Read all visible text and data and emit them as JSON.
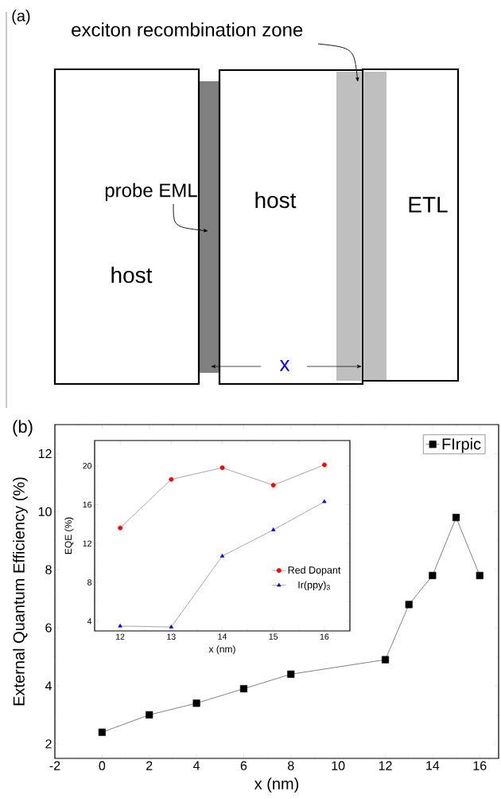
{
  "chart_data": [
    {
      "type": "other",
      "title": "(a)",
      "annotations": [
        "exciton recombination zone",
        "probe EML",
        "host",
        "host",
        "ETL",
        "x"
      ]
    },
    {
      "type": "line",
      "title": "(b)",
      "xlabel": "x (nm)",
      "ylabel": "External Quantum Efficiency (%)",
      "x": [
        0,
        2,
        4,
        6,
        8,
        12,
        13,
        14,
        15,
        16
      ],
      "series": [
        {
          "name": "FIrpic",
          "color": "#000000",
          "values": [
            2.4,
            3.0,
            3.4,
            3.9,
            4.4,
            4.9,
            6.8,
            7.8,
            9.8,
            7.8
          ]
        }
      ],
      "xlim": [
        -2,
        16.8
      ],
      "ylim": [
        1.5,
        13
      ],
      "xticks": [
        -2,
        0,
        2,
        4,
        6,
        8,
        10,
        12,
        14,
        16
      ],
      "yticks": [
        2,
        4,
        6,
        8,
        10,
        12
      ],
      "legend": "top right",
      "marker": "square"
    },
    {
      "type": "line",
      "xlabel": "x (nm)",
      "ylabel": "EQE (%)",
      "x": [
        12,
        13,
        14,
        15,
        16
      ],
      "series": [
        {
          "name": "Red Dopant",
          "color": "#ff0000",
          "marker": "circle",
          "values": [
            13.6,
            18.6,
            19.8,
            18.0,
            20.1
          ]
        },
        {
          "name": "Ir(ppy)$_{3}$",
          "color": "#0000ff",
          "marker": "triangle",
          "values": [
            3.5,
            3.4,
            10.7,
            13.4,
            16.3
          ]
        }
      ],
      "xlim": [
        11.5,
        16.5
      ],
      "ylim": [
        3,
        22.6
      ],
      "xticks": [
        12,
        13,
        14,
        15,
        16
      ],
      "yticks": [
        4,
        8,
        12,
        16,
        20
      ],
      "legend": "bottom right"
    }
  ]
}
